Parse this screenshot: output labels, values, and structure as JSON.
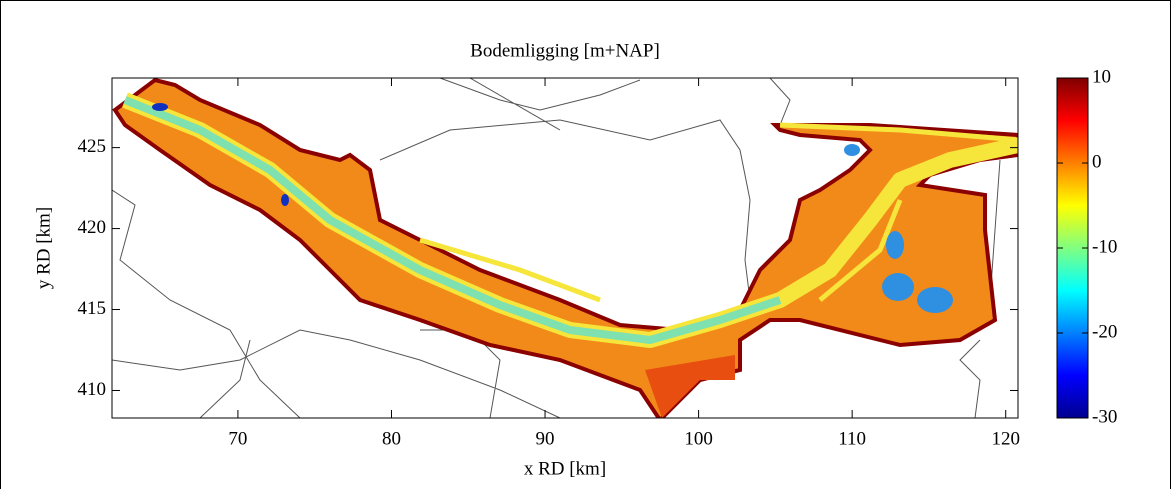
{
  "chart_data": {
    "type": "map",
    "title": "Bodemligging [m+NAP]",
    "xlabel": "x RD [km]",
    "ylabel": "y RD [km]",
    "xlim": [
      61.8,
      120.8
    ],
    "ylim": [
      408.3,
      429.3
    ],
    "xticks": [
      70,
      80,
      90,
      100,
      110,
      120
    ],
    "yticks": [
      410,
      415,
      420,
      425
    ],
    "colormap": "jet",
    "clim": [
      -30,
      10
    ],
    "cticks": [
      -30,
      -20,
      -10,
      0,
      10
    ]
  }
}
